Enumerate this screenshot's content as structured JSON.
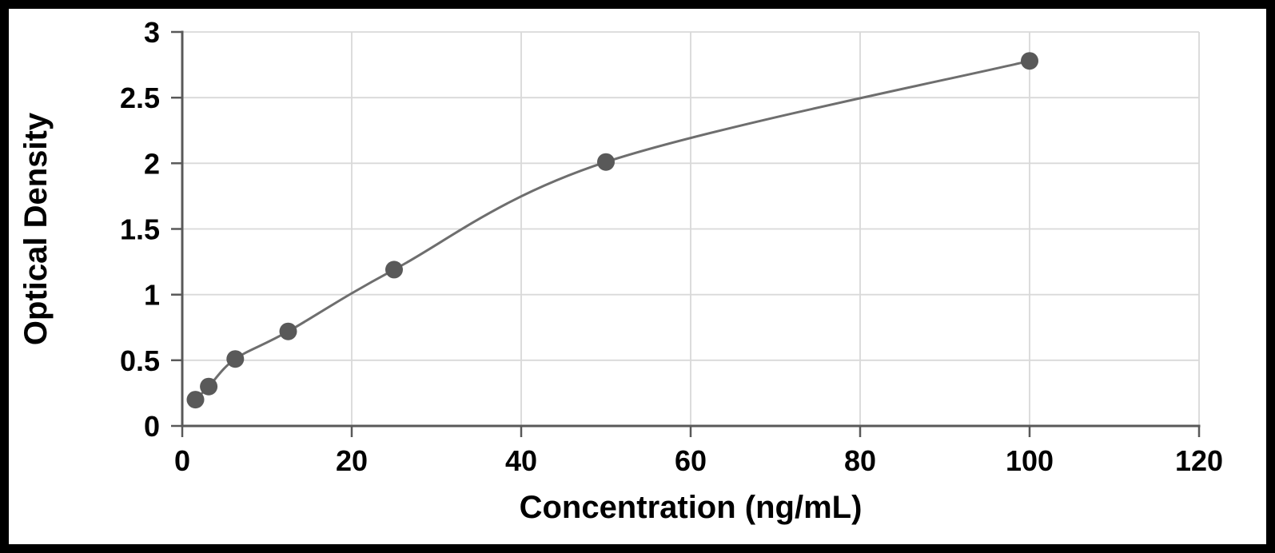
{
  "page": {
    "background": "#ffffff",
    "frame_color": "#000000"
  },
  "chart_data": {
    "type": "scatter",
    "title": "",
    "xlabel": "Concentration (ng/mL)",
    "ylabel": "Optical Density",
    "points": [
      {
        "x": 1.56,
        "y": 0.2
      },
      {
        "x": 3.12,
        "y": 0.3
      },
      {
        "x": 6.25,
        "y": 0.51
      },
      {
        "x": 12.5,
        "y": 0.72
      },
      {
        "x": 25,
        "y": 1.19
      },
      {
        "x": 50,
        "y": 2.01
      },
      {
        "x": 100,
        "y": 2.78
      }
    ],
    "fit_line": true,
    "xlim": [
      0,
      120
    ],
    "ylim": [
      0,
      3
    ],
    "xticks": [
      0,
      20,
      40,
      60,
      80,
      100,
      120
    ],
    "yticks": [
      0,
      0.5,
      1,
      1.5,
      2,
      2.5,
      3
    ],
    "grid": true,
    "legend_position": "none",
    "colors": {
      "marker": "#595959",
      "line": "#6e6e6e",
      "gridline": "#d9d9d9",
      "axis": "#595959",
      "tick_text": "#000000",
      "label_text": "#000000"
    }
  }
}
